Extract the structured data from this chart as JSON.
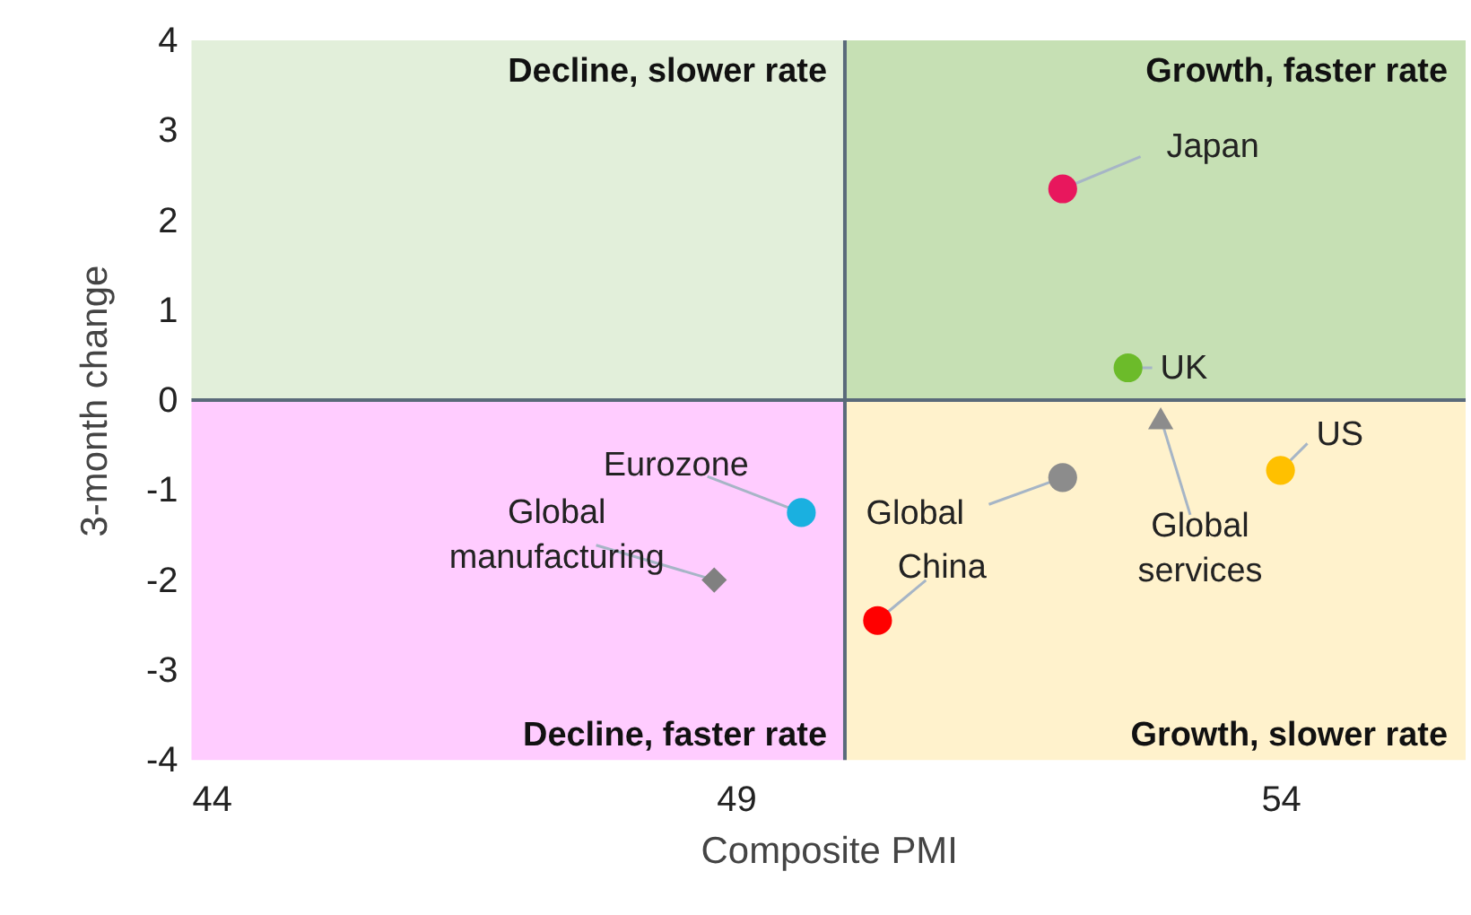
{
  "chart_data": {
    "type": "scatter",
    "xlabel": "Composite PMI",
    "ylabel": "3-month change",
    "xlim": [
      44,
      55.7
    ],
    "ylim": [
      -4,
      4
    ],
    "xticks": [
      44,
      49,
      54
    ],
    "yticks": [
      -4,
      -3,
      -2,
      -1,
      0,
      1,
      2,
      3,
      4
    ],
    "grid": false,
    "series": [
      {
        "name": "Japan",
        "color": "#e8175d",
        "marker": "circle",
        "x": [
          52.0
        ],
        "values": [
          2.35
        ]
      },
      {
        "name": "UK",
        "color": "#6cbb2a",
        "marker": "circle",
        "x": [
          52.6
        ],
        "values": [
          0.36
        ]
      },
      {
        "name": "Global services",
        "color": "#8c8c8c",
        "marker": "triangle",
        "x": [
          52.9
        ],
        "values": [
          -0.2
        ]
      },
      {
        "name": "US",
        "color": "#ffc000",
        "marker": "circle",
        "x": [
          54.0
        ],
        "values": [
          -0.78
        ]
      },
      {
        "name": "Global",
        "color": "#8c8c8c",
        "marker": "circle",
        "x": [
          52.0
        ],
        "values": [
          -0.86
        ]
      },
      {
        "name": "China",
        "color": "#ff0000",
        "marker": "circle",
        "x": [
          50.3
        ],
        "values": [
          -2.45
        ]
      },
      {
        "name": "Eurozone",
        "color": "#1ab0e0",
        "marker": "circle",
        "x": [
          49.6
        ],
        "values": [
          -1.25
        ]
      },
      {
        "name": "Global manufacturing",
        "color": "#808080",
        "marker": "diamond",
        "x": [
          48.8
        ],
        "values": [
          -2.0
        ]
      }
    ],
    "ref_lines": [
      {
        "axis": "x",
        "value": 50,
        "color": "#5a6a7a"
      },
      {
        "axis": "y",
        "value": 0,
        "color": "#5a6a7a"
      }
    ],
    "bands": [
      {
        "axis": "y",
        "from": 0,
        "to": 4,
        "color": "#e2efda",
        "label": "Decline, slower rate"
      },
      {
        "axis": "y",
        "from": 0,
        "to": 4,
        "color": "#c6e0b4",
        "label": "Growth, faster rate"
      },
      {
        "axis": "y",
        "from": -4,
        "to": 0,
        "color": "#ffccff",
        "label": "Decline, faster rate"
      },
      {
        "axis": "y",
        "from": -4,
        "to": 0,
        "color": "#fff2cc",
        "label": "Growth, slower rate"
      }
    ]
  }
}
